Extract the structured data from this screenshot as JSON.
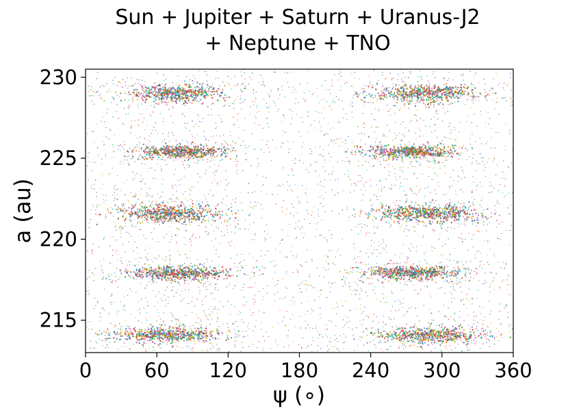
{
  "chart_data": {
    "type": "scatter",
    "title_lines": [
      "Sun + Jupiter + Saturn + Uranus-J2",
      "+ Neptune + TNO"
    ],
    "xlabel": "ψ (∘)",
    "ylabel": "a (au)",
    "xlim": [
      0,
      360
    ],
    "ylim": [
      213,
      230.5
    ],
    "xticks": [
      0,
      60,
      120,
      180,
      240,
      300,
      360
    ],
    "xtick_labels": [
      "0",
      "60",
      "120",
      "180",
      "240",
      "300",
      "360"
    ],
    "yticks": [
      215,
      220,
      225,
      230
    ],
    "ytick_labels": [
      "215",
      "220",
      "225",
      "230"
    ],
    "grid": false,
    "legend": "none",
    "point_colors": [
      "#1f77b4",
      "#ff7f0e",
      "#2ca02c",
      "#d62728",
      "#9467bd",
      "#8c564b",
      "#e377c2",
      "#7f7f7f",
      "#bcbd22",
      "#17becf"
    ],
    "clusters": [
      {
        "x_center": 75,
        "x_halfwidth": 45,
        "a_center": 229.0,
        "a_halfwidth": 0.55
      },
      {
        "x_center": 285,
        "x_halfwidth": 45,
        "a_center": 229.0,
        "a_halfwidth": 0.55
      },
      {
        "x_center": 80,
        "x_halfwidth": 40,
        "a_center": 225.4,
        "a_halfwidth": 0.4
      },
      {
        "x_center": 275,
        "x_halfwidth": 40,
        "a_center": 225.4,
        "a_halfwidth": 0.4
      },
      {
        "x_center": 72,
        "x_halfwidth": 48,
        "a_center": 221.6,
        "a_halfwidth": 0.55
      },
      {
        "x_center": 288,
        "x_halfwidth": 48,
        "a_center": 221.6,
        "a_halfwidth": 0.55
      },
      {
        "x_center": 80,
        "x_halfwidth": 45,
        "a_center": 217.9,
        "a_halfwidth": 0.45
      },
      {
        "x_center": 275,
        "x_halfwidth": 45,
        "a_center": 217.9,
        "a_halfwidth": 0.45
      },
      {
        "x_center": 68,
        "x_halfwidth": 50,
        "a_center": 214.1,
        "a_halfwidth": 0.5
      },
      {
        "x_center": 290,
        "x_halfwidth": 50,
        "a_center": 214.1,
        "a_halfwidth": 0.5
      }
    ]
  }
}
